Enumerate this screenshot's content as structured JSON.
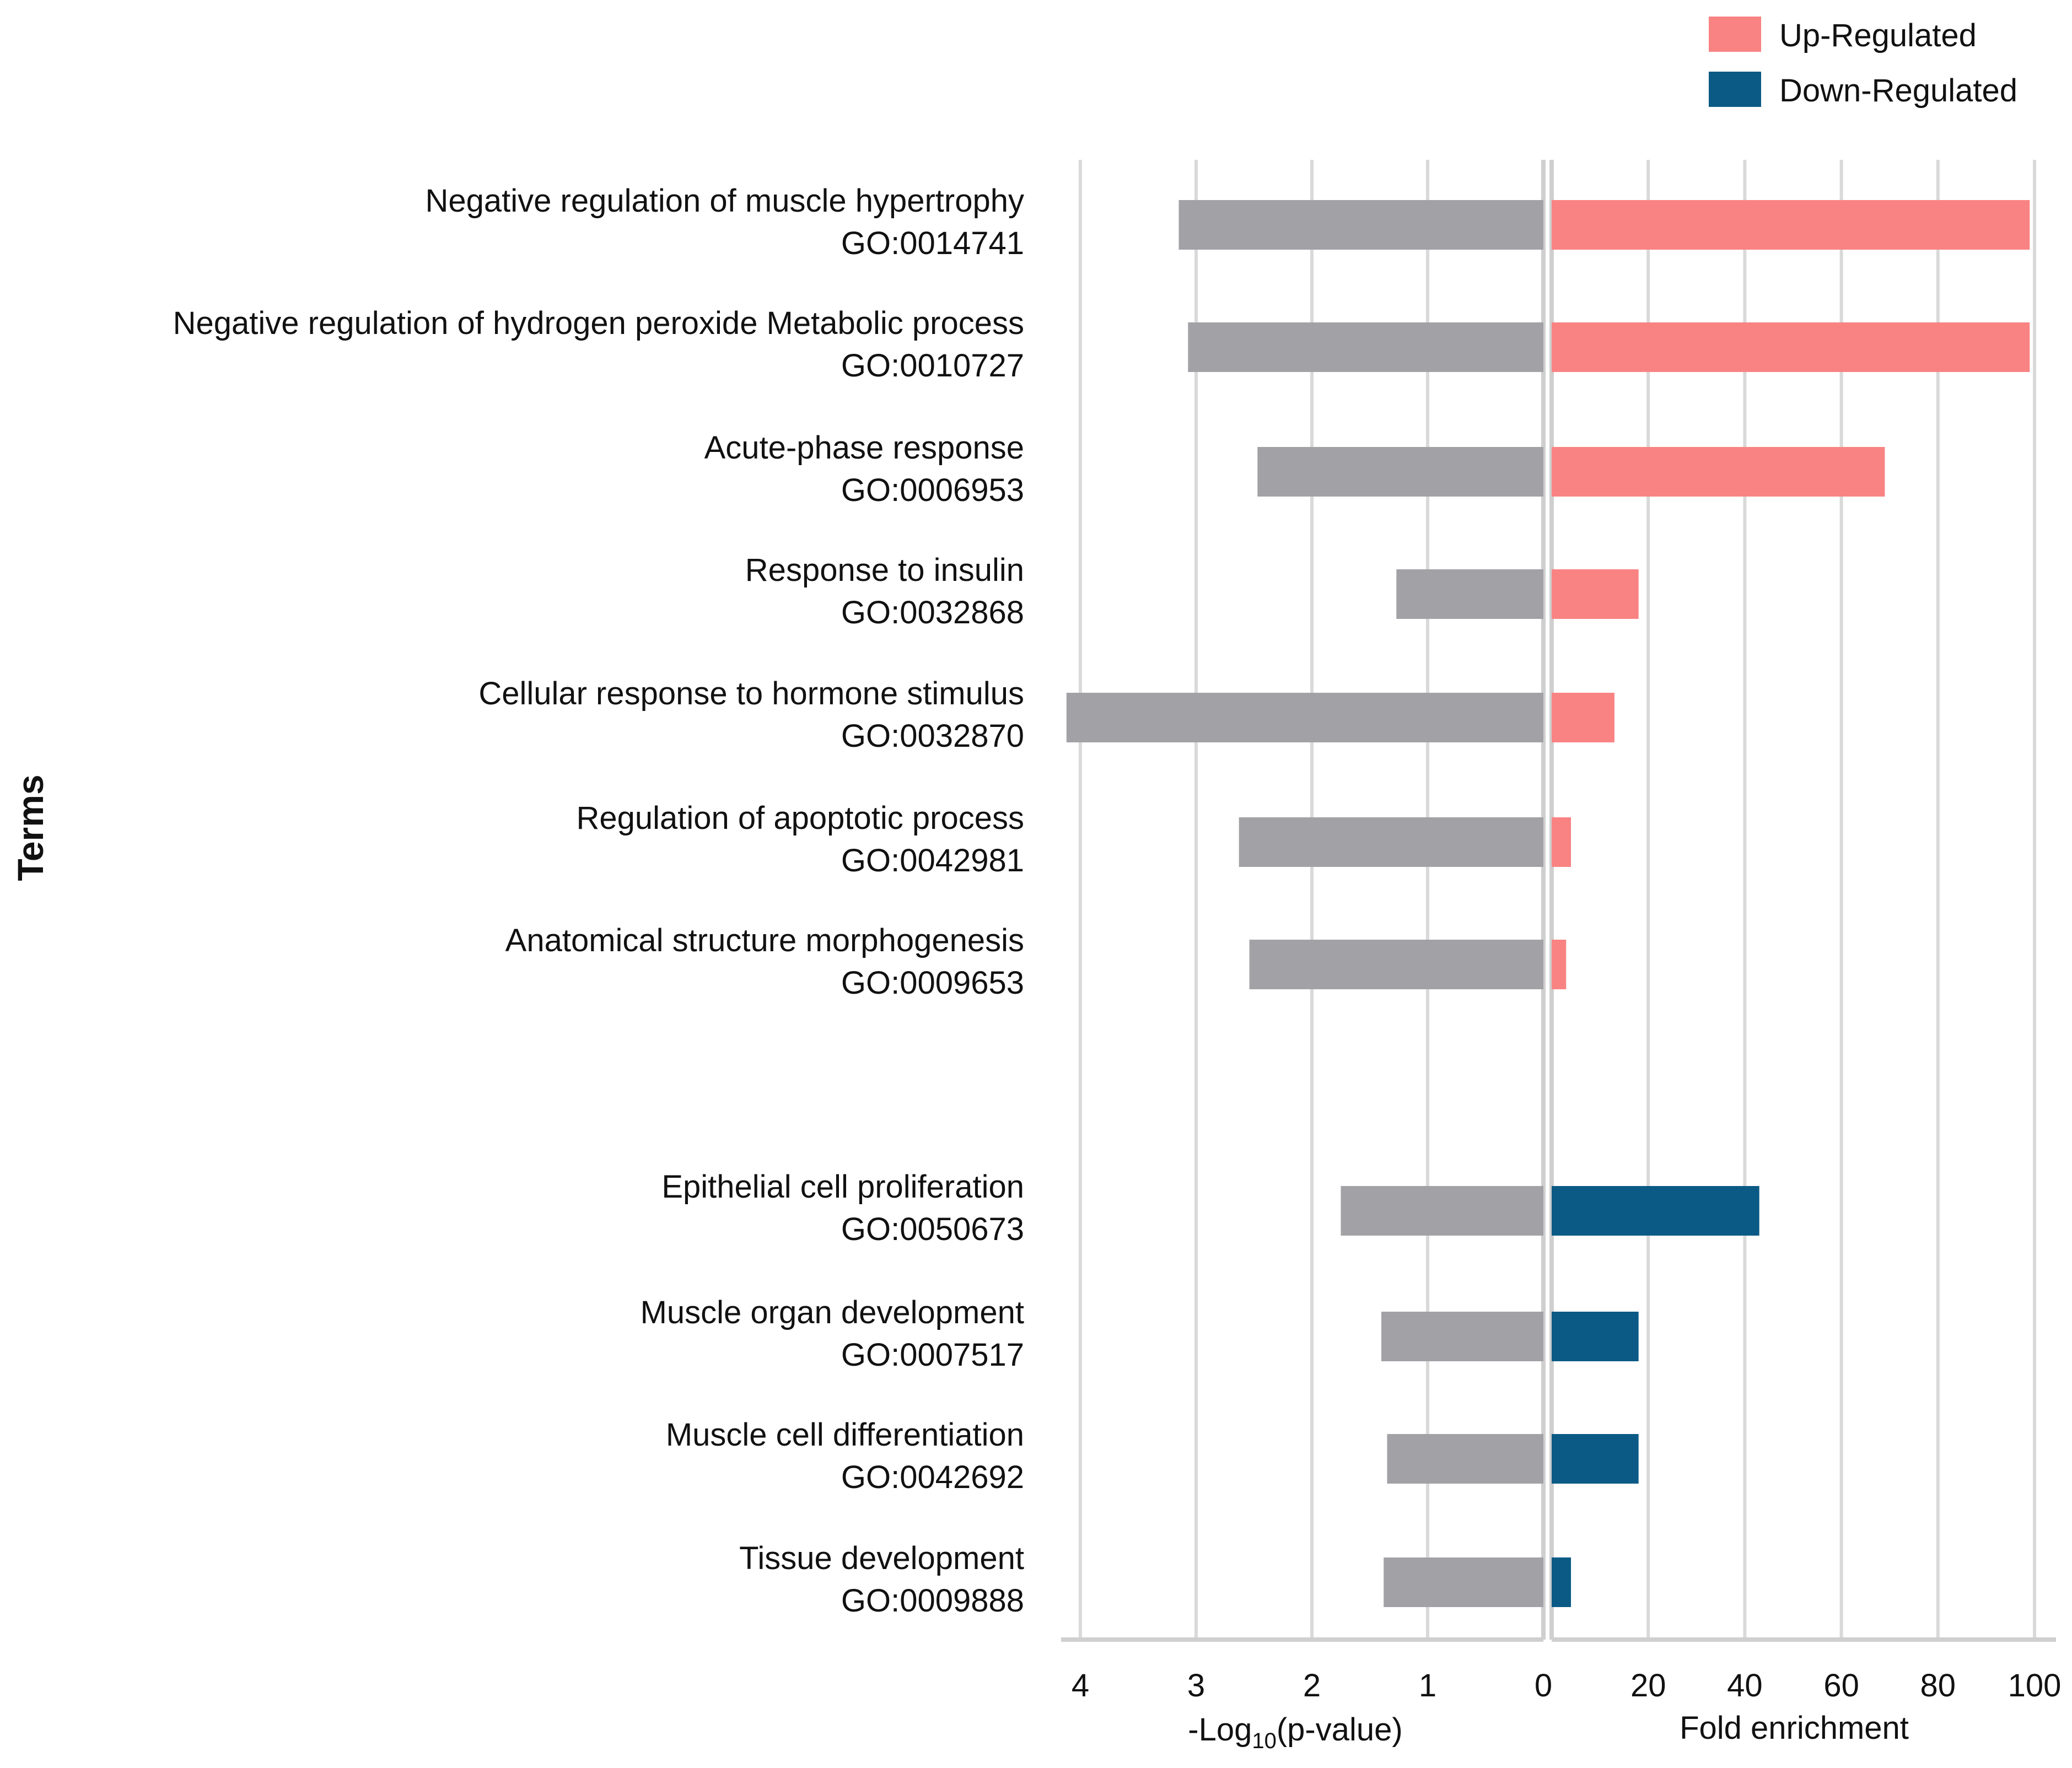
{
  "chart_data": {
    "type": "bar",
    "legend": {
      "placement": "top-right",
      "entries": [
        {
          "name": "Up-Regulated",
          "color": "#f98383"
        },
        {
          "name": "Down-Regulated",
          "color": "#0b5a85"
        }
      ]
    },
    "y_axis_title": "Terms",
    "categories": [
      {
        "name": "Negative regulation of muscle hypertrophy",
        "go": "GO:0014741",
        "group": "up",
        "neg_log10_p": 3.15,
        "fold_enrichment": 99
      },
      {
        "name": "Negative regulation of hydrogen peroxide Metabolic process",
        "go": "GO:0010727",
        "group": "up",
        "neg_log10_p": 3.07,
        "fold_enrichment": 99
      },
      {
        "name": "Acute-phase response",
        "go": "GO:0006953",
        "group": "up",
        "neg_log10_p": 2.47,
        "fold_enrichment": 69
      },
      {
        "name": "Response to insulin",
        "go": "GO:0032868",
        "group": "up",
        "neg_log10_p": 1.27,
        "fold_enrichment": 18
      },
      {
        "name": "Cellular response to hormone stimulus",
        "go": "GO:0032870",
        "group": "up",
        "neg_log10_p": 4.12,
        "fold_enrichment": 13
      },
      {
        "name": "Regulation of apoptotic process",
        "go": "GO:0042981",
        "group": "up",
        "neg_log10_p": 2.63,
        "fold_enrichment": 4
      },
      {
        "name": "Anatomical structure morphogenesis",
        "go": "GO:0009653",
        "group": "up",
        "neg_log10_p": 2.54,
        "fold_enrichment": 3
      },
      {
        "name": "Epithelial cell proliferation",
        "go": "GO:0050673",
        "group": "down",
        "neg_log10_p": 1.75,
        "fold_enrichment": 43
      },
      {
        "name": "Muscle organ development",
        "go": "GO:0007517",
        "group": "down",
        "neg_log10_p": 1.4,
        "fold_enrichment": 18
      },
      {
        "name": "Muscle cell differentiation",
        "go": "GO:0042692",
        "group": "down",
        "neg_log10_p": 1.35,
        "fold_enrichment": 18
      },
      {
        "name": "Tissue development",
        "go": "GO:0009888",
        "group": "down",
        "neg_log10_p": 1.38,
        "fold_enrichment": 4
      }
    ],
    "left_panel": {
      "xlabel_prefix": "-Log",
      "xlabel_sub": "10",
      "xlabel_suffix": "(p-value)",
      "xlim": [
        0,
        4
      ],
      "ticks": [
        "4",
        "3",
        "2",
        "1",
        "0"
      ],
      "tick_values": [
        4,
        3,
        2,
        1,
        0
      ],
      "bar_color": "#a2a1a6",
      "reversed": true
    },
    "right_panel": {
      "xlabel": "Fold enrichment",
      "xlim": [
        0,
        100
      ],
      "ticks": [
        "20",
        "40",
        "60",
        "80",
        "100"
      ],
      "tick_values": [
        20,
        40,
        60,
        80,
        100
      ]
    },
    "grid": true
  }
}
